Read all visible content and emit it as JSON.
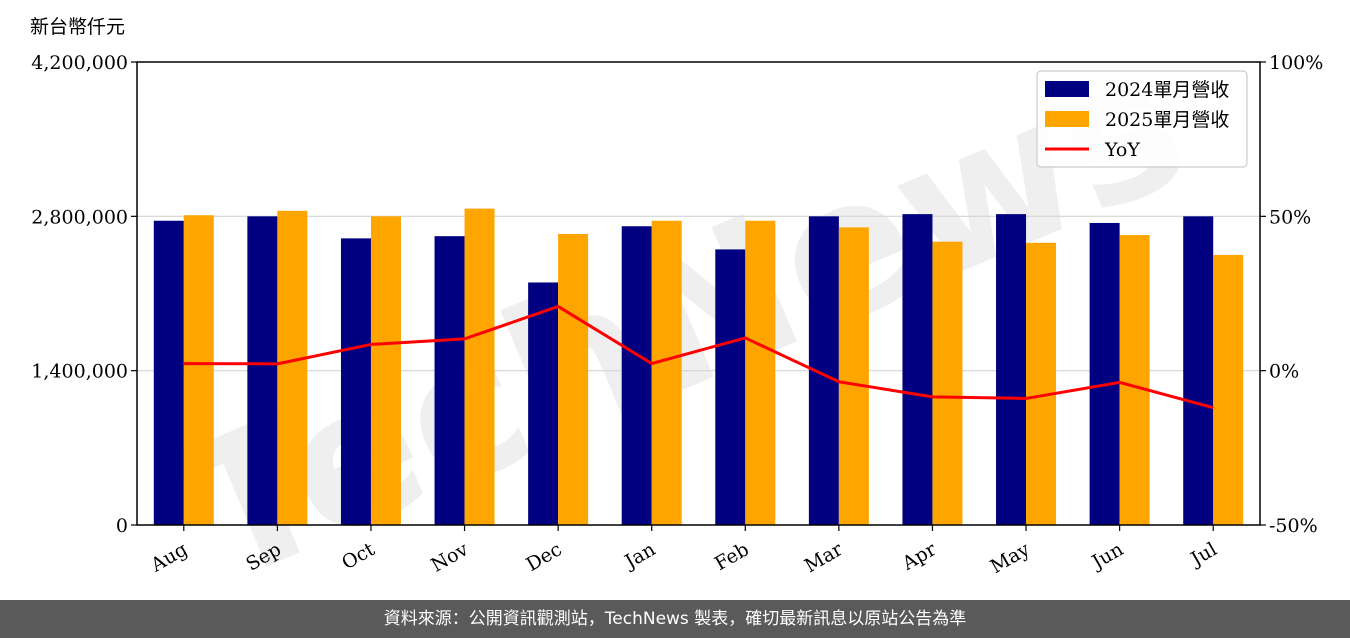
{
  "footer": {
    "source_text": "資料來源：公開資訊觀測站，TechNews 製表，確切最新訊息以原站公告為準"
  },
  "watermark": {
    "text": "TechNews"
  },
  "chart_data": {
    "type": "bar",
    "y_unit_label": "新台幣仟元",
    "categories": [
      "Aug",
      "Sep",
      "Oct",
      "Nov",
      "Dec",
      "Jan",
      "Feb",
      "Mar",
      "Apr",
      "May",
      "Jun",
      "Jul"
    ],
    "series": [
      {
        "name": "2024單月營收",
        "type": "bar",
        "color": "#000080",
        "values": [
          2760000,
          2800000,
          2600000,
          2620000,
          2200000,
          2710000,
          2500000,
          2800000,
          2820000,
          2820000,
          2740000,
          2800000
        ]
      },
      {
        "name": "2025單月營收",
        "type": "bar",
        "color": "#FFA500",
        "values": [
          2810000,
          2850000,
          2800000,
          2870000,
          2640000,
          2760000,
          2760000,
          2700000,
          2570000,
          2560000,
          2630000,
          2450000
        ]
      },
      {
        "name": "YoY",
        "type": "line",
        "axis": "right",
        "color": "#FF0000",
        "values": [
          2.3,
          2.2,
          8.5,
          10.3,
          20.8,
          2.3,
          10.6,
          -3.6,
          -8.5,
          -9.0,
          -3.8,
          -12.0
        ]
      }
    ],
    "y_left": {
      "range": [
        0,
        4200000
      ],
      "ticks": [
        "0",
        "1,400,000",
        "2,800,000",
        "4,200,000"
      ],
      "tick_values": [
        0,
        1400000,
        2800000,
        4200000
      ]
    },
    "y_right": {
      "range": [
        -50,
        100
      ],
      "ticks": [
        "-50%",
        "0%",
        "50%",
        "100%"
      ],
      "tick_values": [
        -50,
        0,
        50,
        100
      ]
    },
    "grid": "horizontal",
    "legend": "top-right"
  }
}
